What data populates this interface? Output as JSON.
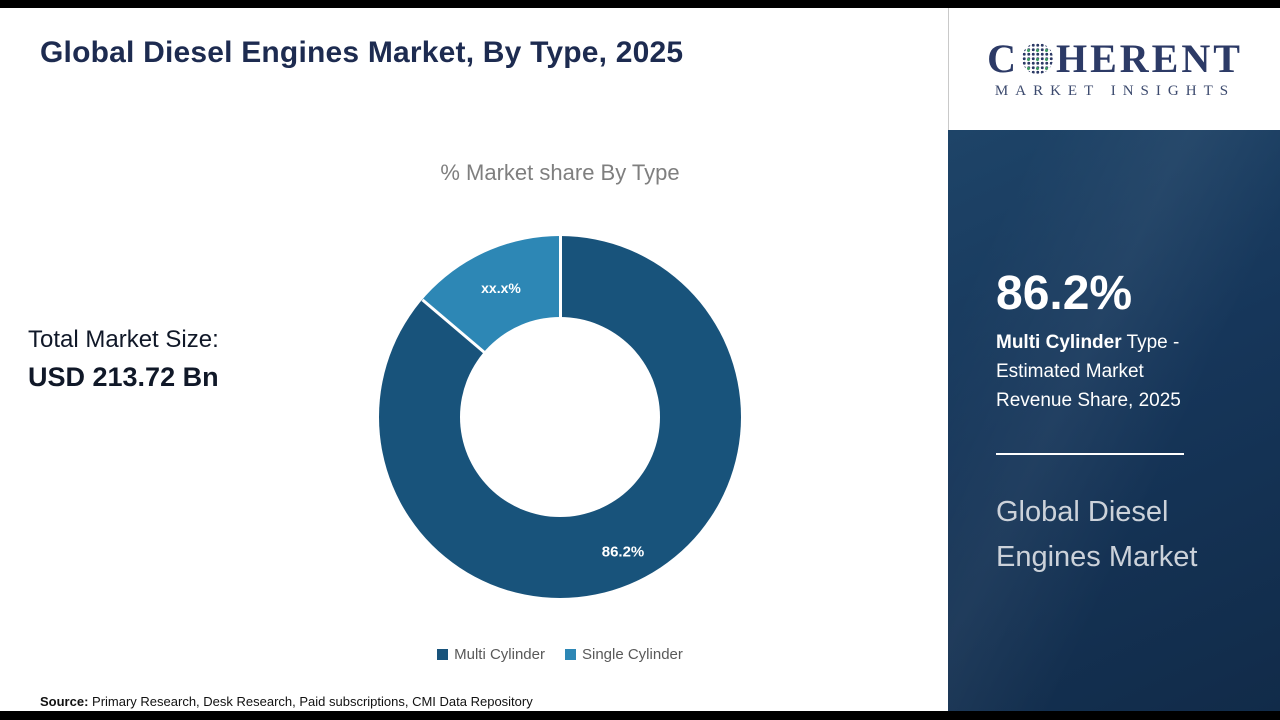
{
  "title": "Global Diesel Engines Market, By Type, 2025",
  "logo": {
    "c": "C",
    "rest": "HERENT",
    "tagline": "MARKET INSIGHTS"
  },
  "chart_data": {
    "type": "pie",
    "variant": "donut",
    "title": "% Market share By Type",
    "categories": [
      "Multi Cylinder",
      "Single Cylinder"
    ],
    "values": [
      86.2,
      13.8
    ],
    "slice_labels": [
      "86.2%",
      "xx.x%"
    ],
    "colors": [
      "#18537b",
      "#2d87b5"
    ],
    "legend_position": "bottom"
  },
  "total_market": {
    "label": "Total Market Size:",
    "value": "USD 213.72 Bn"
  },
  "sidebar": {
    "stat_value": "86.2%",
    "stat_bold": "Multi Cylinder",
    "stat_rest": " Type - Estimated Market Revenue Share, 2025",
    "panel_title": "Global Diesel Engines Market"
  },
  "source": {
    "label": "Source:",
    "text": " Primary Research, Desk Research, Paid subscriptions, CMI Data Repository"
  }
}
